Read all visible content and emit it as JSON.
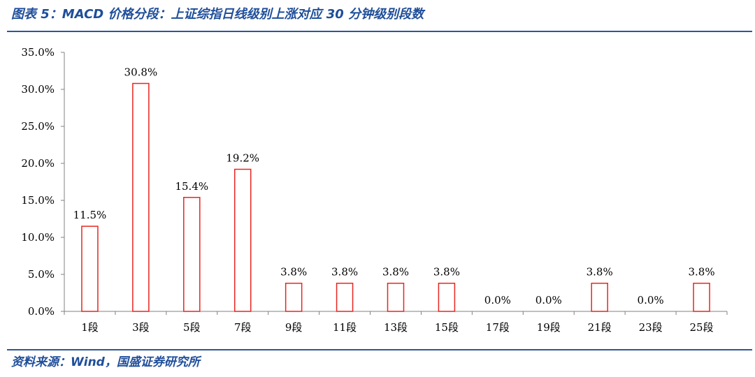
{
  "header": {
    "title": "图表 5：MACD 价格分段：上证综指日线级别上涨对应 30 分钟级别段数"
  },
  "footer": {
    "source": "资料来源：Wind，国盛证券研究所"
  },
  "colors": {
    "bar_stroke": "#e8251f",
    "title": "#1f4e9a",
    "rule": "#2f5597",
    "axis": "#808080"
  },
  "chart_data": {
    "type": "bar",
    "title": "",
    "xlabel": "",
    "ylabel": "",
    "categories": [
      "1段",
      "3段",
      "5段",
      "7段",
      "9段",
      "11段",
      "13段",
      "15段",
      "17段",
      "19段",
      "21段",
      "23段",
      "25段"
    ],
    "values": [
      11.5,
      30.8,
      15.4,
      19.2,
      3.8,
      3.8,
      3.8,
      3.8,
      0.0,
      0.0,
      3.8,
      0.0,
      3.8
    ],
    "value_labels": [
      "11.5%",
      "30.8%",
      "15.4%",
      "19.2%",
      "3.8%",
      "3.8%",
      "3.8%",
      "3.8%",
      "0.0%",
      "0.0%",
      "3.8%",
      "0.0%",
      "3.8%"
    ],
    "y_ticks": [
      "0.0%",
      "5.0%",
      "10.0%",
      "15.0%",
      "20.0%",
      "25.0%",
      "30.0%",
      "35.0%"
    ],
    "ylim": [
      0,
      35
    ],
    "unit": "%",
    "grid": false,
    "legend": "none",
    "bar_style": "hollow"
  }
}
